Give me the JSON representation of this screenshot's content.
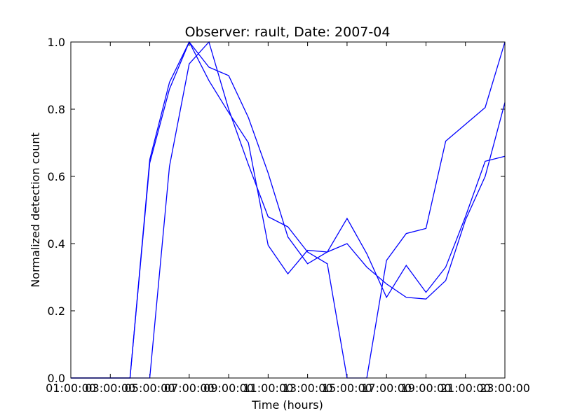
{
  "chart_data": {
    "type": "line",
    "title": "Observer: rault, Date: 2007-04",
    "x_label": "Time (hours)",
    "y_label": "Normalized detection count",
    "categories": [
      "01:00:00",
      null,
      "03:00:00",
      null,
      "05:00:00",
      null,
      "07:00:00",
      null,
      "09:00:00",
      null,
      "11:00:00",
      null,
      "13:00:00",
      null,
      "15:00:00",
      null,
      "17:00:00",
      null,
      "19:00:00",
      null,
      "21:00:00",
      null,
      "23:00:00"
    ],
    "series": [
      {
        "color": "#0000ff",
        "values": [
          0,
          0,
          0,
          0,
          0.65,
          0.88,
          1.0,
          0.885,
          0.79,
          0.7,
          0.395,
          0.31,
          0.38,
          0.375,
          0.475,
          0.37,
          0.24,
          0.335,
          0.255,
          0.33,
          0.48,
          0.645,
          0.66
        ]
      },
      {
        "color": "#0000ff",
        "values": [
          0,
          0,
          0,
          0,
          0.64,
          0.86,
          1.0,
          0.925,
          0.9,
          0.775,
          0.61,
          0.42,
          0.34,
          0.375,
          0.4,
          0.33,
          0.28,
          0.24,
          0.235,
          0.29,
          0.47,
          0.6,
          0.82
        ]
      },
      {
        "color": "#0000ff",
        "values": [
          0,
          0,
          0,
          0,
          0,
          0.63,
          0.935,
          1.0,
          0.8,
          0.635,
          0.48,
          0.45,
          0.375,
          0.34,
          0,
          0,
          0.35,
          0.43,
          0.445,
          0.705,
          0.755,
          0.805,
          1.0
        ]
      }
    ],
    "ylim": [
      0,
      1
    ],
    "yticks": [
      {
        "value": 0,
        "label": "0.0"
      },
      0.2,
      0.4,
      0.6,
      0.8,
      {
        "value": 1,
        "label": "1.0"
      }
    ]
  }
}
